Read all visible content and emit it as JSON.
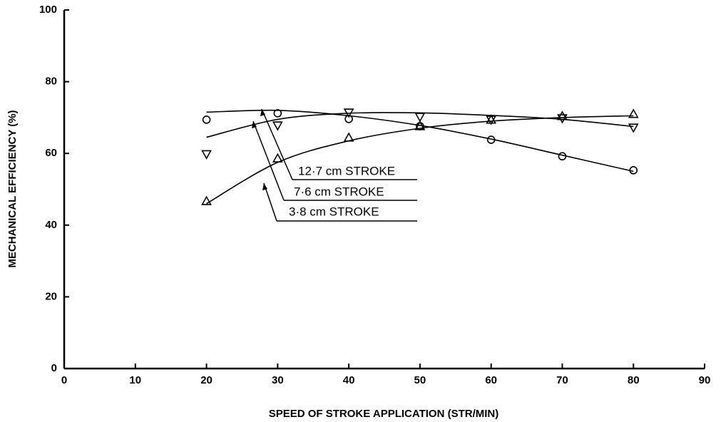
{
  "chart_data": {
    "type": "scatter",
    "xlabel": "SPEED OF STROKE APPLICATION (STR/MIN)",
    "ylabel": "MECHANICAL EFFICIENCY (%)",
    "xlim": [
      0,
      90
    ],
    "xticks": [
      0,
      10,
      20,
      30,
      40,
      50,
      60,
      70,
      80,
      90
    ],
    "ylim": [
      0,
      100
    ],
    "yticks": [
      0,
      20,
      40,
      60,
      80,
      100
    ],
    "x": [
      20,
      30,
      40,
      50,
      60,
      70,
      80
    ],
    "series": [
      {
        "name": "12·7 cm  STROKE",
        "marker": "circle",
        "color": "#000000",
        "values": [
          69.4,
          71.2,
          69.6,
          67.6,
          63.8,
          59.2,
          55.3
        ],
        "curve": {
          "x": [
            20,
            30,
            40,
            50,
            60,
            70,
            80
          ],
          "values": [
            71.5,
            72,
            70.5,
            67.8,
            64,
            59.5,
            55
          ]
        }
      },
      {
        "name": "7·6 cm  STROKE",
        "marker": "triangle-down",
        "color": "#000000",
        "values": [
          59.8,
          67.8,
          71.4,
          70.2,
          69.4,
          69.8,
          67.2
        ],
        "curve": {
          "x": [
            20,
            30,
            40,
            50,
            60,
            70,
            80
          ],
          "values": [
            64.5,
            69.5,
            71.2,
            71.3,
            70.6,
            69.5,
            67.5
          ]
        }
      },
      {
        "name": "3·8 cm  STROKE",
        "marker": "triangle-up",
        "color": "#000000",
        "values": [
          46.7,
          58.6,
          64.4,
          67.6,
          69.4,
          70.4,
          71
        ],
        "curve": {
          "x": [
            20,
            30,
            40,
            50,
            60,
            70,
            80
          ],
          "values": [
            46,
            57.5,
            63.5,
            67,
            69,
            70,
            70.5
          ]
        }
      }
    ]
  }
}
